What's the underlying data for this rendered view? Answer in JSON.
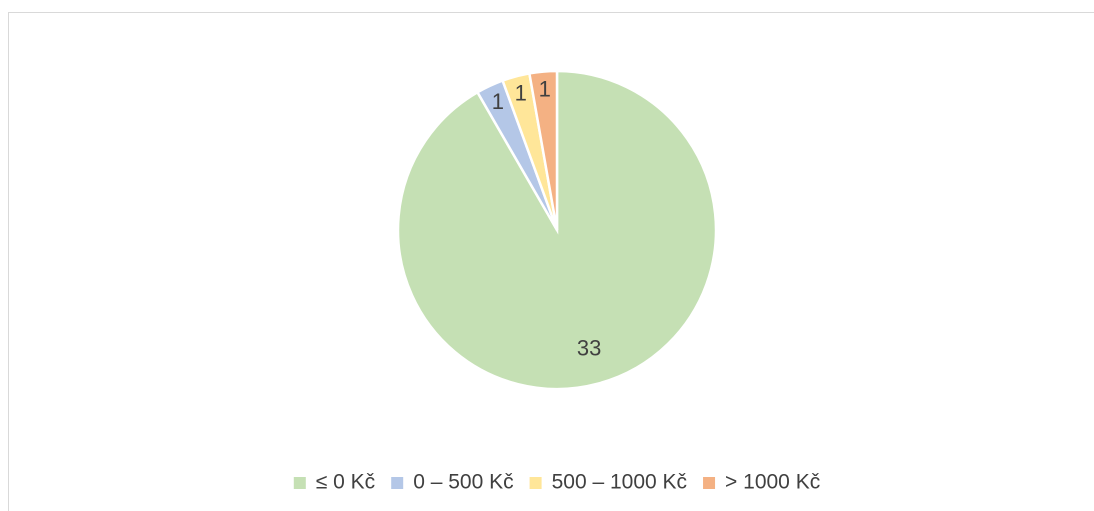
{
  "chart_data": {
    "type": "pie",
    "categories": [
      "≤ 0 Kč",
      "0 – 500 Kč",
      "500 – 1000 Kč",
      "> 1000 Kč"
    ],
    "values": [
      33,
      1,
      1,
      1
    ],
    "colors": [
      "#c5e0b4",
      "#b4c7e7",
      "#ffe699",
      "#f4b183"
    ],
    "legend": "bottom"
  }
}
